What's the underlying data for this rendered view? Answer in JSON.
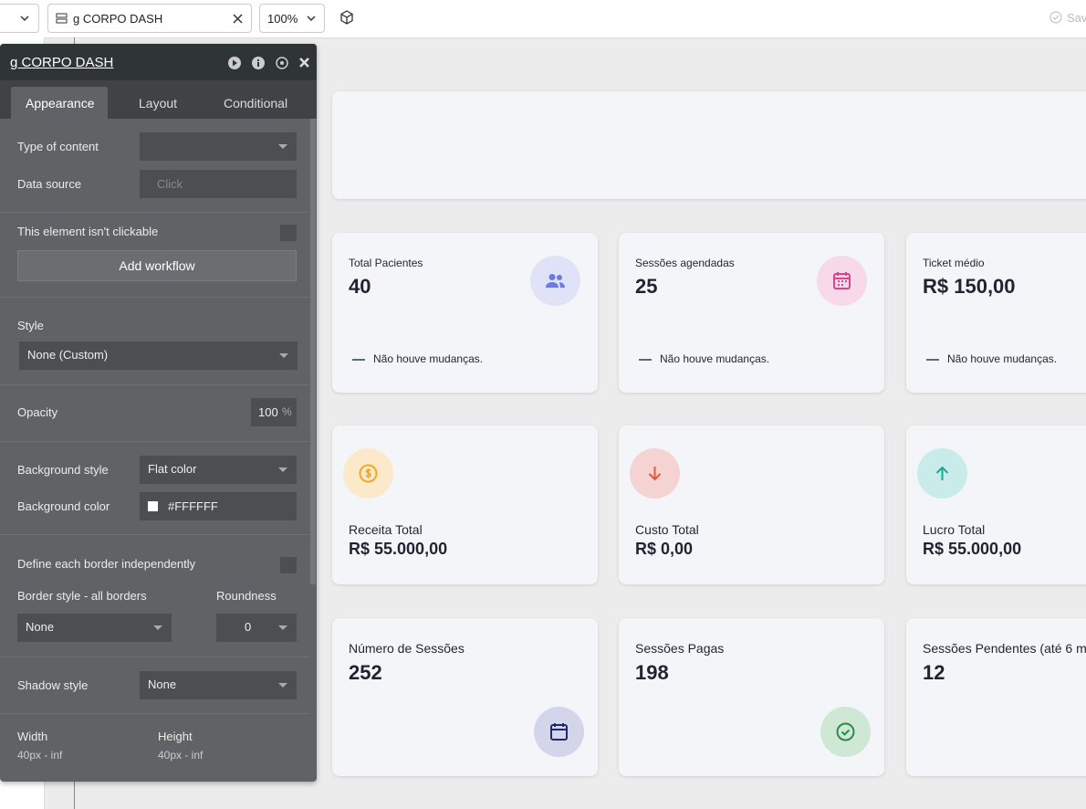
{
  "toolbar": {
    "element_tab": "g CORPO DASH",
    "zoom": "100%",
    "status": "Sav"
  },
  "panel": {
    "title": "g CORPO DASH",
    "tabs": [
      "Appearance",
      "Layout",
      "Conditional"
    ],
    "type_of_content": "Type of content",
    "data_source": "Data source",
    "data_source_placeholder": "Click",
    "not_clickable": "This element isn't clickable",
    "add_workflow": "Add workflow",
    "style_label": "Style",
    "style_value": "None (Custom)",
    "opacity_label": "Opacity",
    "opacity_value": "100",
    "opacity_unit": "%",
    "bg_style_label": "Background style",
    "bg_style_value": "Flat color",
    "bg_color_label": "Background color",
    "bg_color_value": "#FFFFFF",
    "border_independent": "Define each border independently",
    "border_style_label": "Border style - all borders",
    "roundness_label": "Roundness",
    "border_style_value": "None",
    "roundness_value": "0",
    "shadow_label": "Shadow style",
    "shadow_value": "None",
    "width_label": "Width",
    "width_value": "40px - inf",
    "height_label": "Height",
    "height_value": "40px - inf"
  },
  "cards": [
    {
      "label": "Total Pacientes",
      "value": "40",
      "note": "Não houve mudanças."
    },
    {
      "label": "Sessões agendadas",
      "value": "25",
      "note": "Não houve mudanças."
    },
    {
      "label": "Ticket médio",
      "value": "R$ 150,00",
      "note": "Não houve mudanças."
    },
    {
      "label": "Receita Total",
      "value": "R$ 55.000,00"
    },
    {
      "label": "Custo Total",
      "value": "R$ 0,00"
    },
    {
      "label": "Lucro Total",
      "value": "R$ 55.000,00"
    },
    {
      "label": "Número de Sessões",
      "value": "252"
    },
    {
      "label": "Sessões Pagas",
      "value": "198"
    },
    {
      "label": "Sessões Pendentes (até 6 m",
      "value": "12"
    }
  ]
}
